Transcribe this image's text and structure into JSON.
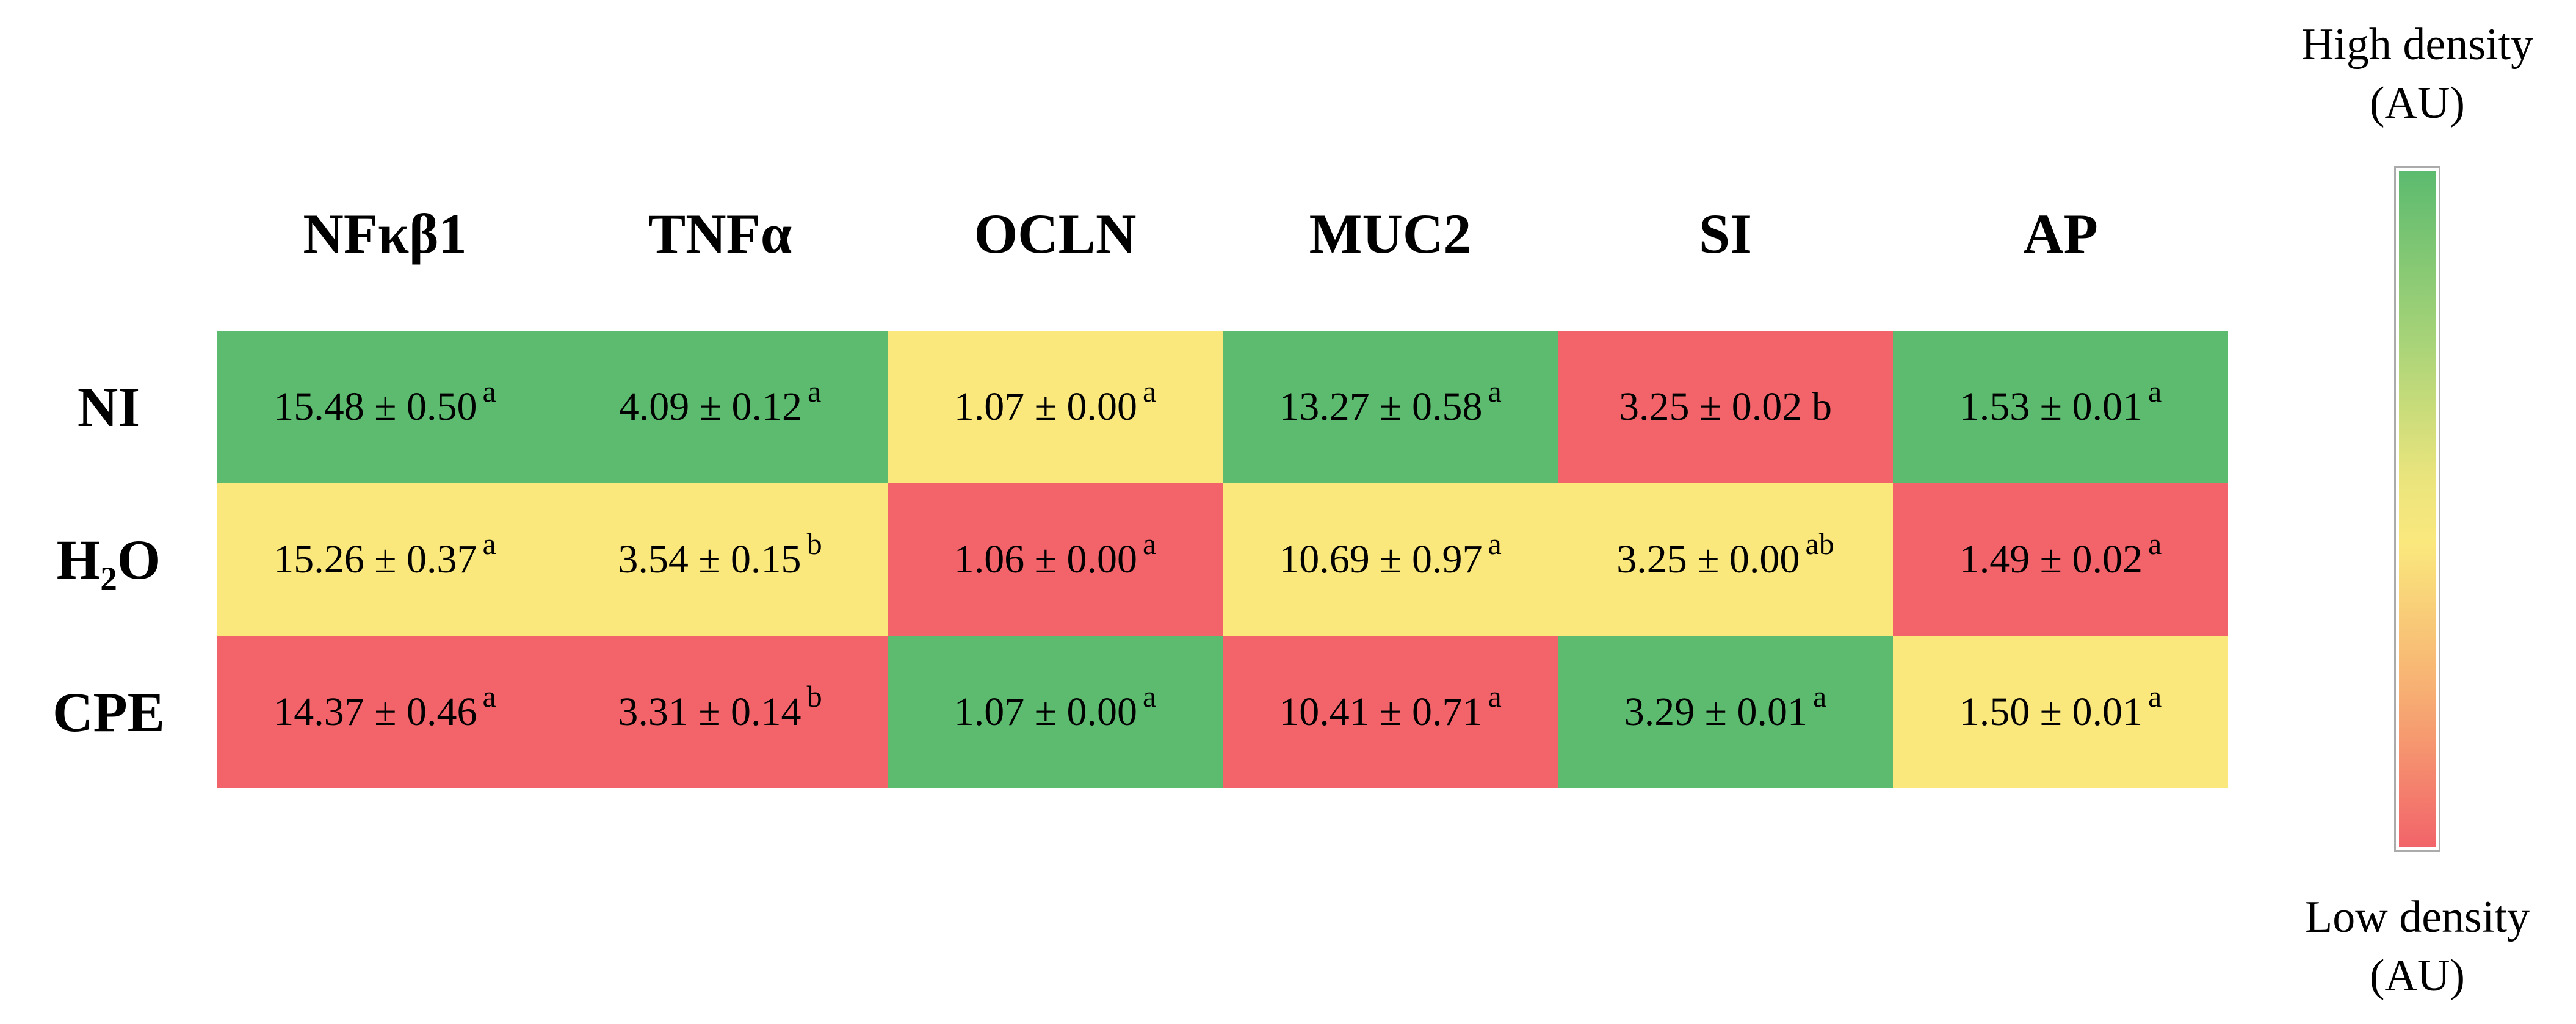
{
  "colors": {
    "green": "#5CBB6F",
    "yellow": "#FAE87D",
    "red": "#F2646A",
    "colorbar_border": "#ABABAB",
    "gradient": [
      "#5CBB6F 0%",
      "#A7D378 25%",
      "#E9E47D 45%",
      "#FAE87D 55%",
      "#F7AC72 78%",
      "#F2646A 100%"
    ],
    "text": "#000000",
    "background": "#FFFFFF"
  },
  "chart_data": {
    "type": "heatmap",
    "title": "",
    "value_separator": "±",
    "columns": [
      "NFκβ1",
      "TNFα",
      "OCLN",
      "MUC2",
      "SI",
      "AP"
    ],
    "rows": [
      "NI",
      "H₂O",
      "CPE"
    ],
    "cells": [
      [
        {
          "value": "15.48",
          "sd": "0.50",
          "letter": "a",
          "letter_superscript": true,
          "level": "green"
        },
        {
          "value": "4.09",
          "sd": "0.12",
          "letter": "a",
          "letter_superscript": true,
          "level": "green"
        },
        {
          "value": "1.07",
          "sd": "0.00",
          "letter": "a",
          "letter_superscript": true,
          "level": "yellow"
        },
        {
          "value": "13.27",
          "sd": "0.58",
          "letter": "a",
          "letter_superscript": true,
          "level": "green"
        },
        {
          "value": "3.25",
          "sd": "0.02",
          "letter": "b",
          "letter_superscript": false,
          "level": "red"
        },
        {
          "value": "1.53",
          "sd": "0.01",
          "letter": "a",
          "letter_superscript": true,
          "level": "green"
        }
      ],
      [
        {
          "value": "15.26",
          "sd": "0.37",
          "letter": "a",
          "letter_superscript": true,
          "level": "yellow"
        },
        {
          "value": "3.54",
          "sd": "0.15",
          "letter": "b",
          "letter_superscript": true,
          "level": "yellow"
        },
        {
          "value": "1.06",
          "sd": "0.00",
          "letter": "a",
          "letter_superscript": true,
          "level": "red"
        },
        {
          "value": "10.69",
          "sd": "0.97",
          "letter": "a",
          "letter_superscript": true,
          "level": "yellow"
        },
        {
          "value": "3.25",
          "sd": "0.00",
          "letter": "ab",
          "letter_superscript": true,
          "level": "yellow"
        },
        {
          "value": "1.49",
          "sd": "0.02",
          "letter": "a",
          "letter_superscript": true,
          "level": "red"
        }
      ],
      [
        {
          "value": "14.37",
          "sd": "0.46",
          "letter": "a",
          "letter_superscript": true,
          "level": "red"
        },
        {
          "value": "3.31",
          "sd": "0.14",
          "letter": "b",
          "letter_superscript": true,
          "level": "red"
        },
        {
          "value": "1.07",
          "sd": "0.00",
          "letter": "a",
          "letter_superscript": true,
          "level": "green"
        },
        {
          "value": "10.41",
          "sd": "0.71",
          "letter": "a",
          "letter_superscript": true,
          "level": "red"
        },
        {
          "value": "3.29",
          "sd": "0.01",
          "letter": "a",
          "letter_superscript": true,
          "level": "green"
        },
        {
          "value": "1.50",
          "sd": "0.01",
          "letter": "a",
          "letter_superscript": true,
          "level": "yellow"
        }
      ]
    ],
    "level_meaning": {
      "green": "high density",
      "yellow": "mid density",
      "red": "low density"
    },
    "colorbar": {
      "top_label": "High density",
      "top_unit": "(AU)",
      "bottom_label": "Low density",
      "bottom_unit": "(AU)"
    },
    "legend_position": "right",
    "grid": false
  }
}
